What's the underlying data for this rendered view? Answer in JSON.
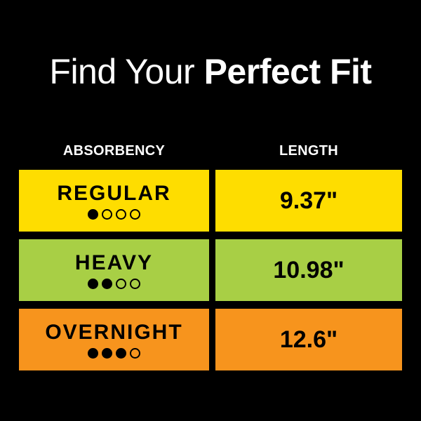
{
  "title": {
    "light": "Find Your ",
    "bold": "Perfect Fit"
  },
  "headers": {
    "absorbency": "ABSORBENCY",
    "length": "LENGTH"
  },
  "rows": [
    {
      "name": "REGULAR",
      "level": 1,
      "max_level": 4,
      "length": "9.37\"",
      "color": "#FEDD00"
    },
    {
      "name": "HEAVY",
      "level": 2,
      "max_level": 4,
      "length": "10.98\"",
      "color": "#A8CF45"
    },
    {
      "name": "OVERNIGHT",
      "level": 3,
      "max_level": 4,
      "length": "12.6\"",
      "color": "#F7941D"
    }
  ]
}
